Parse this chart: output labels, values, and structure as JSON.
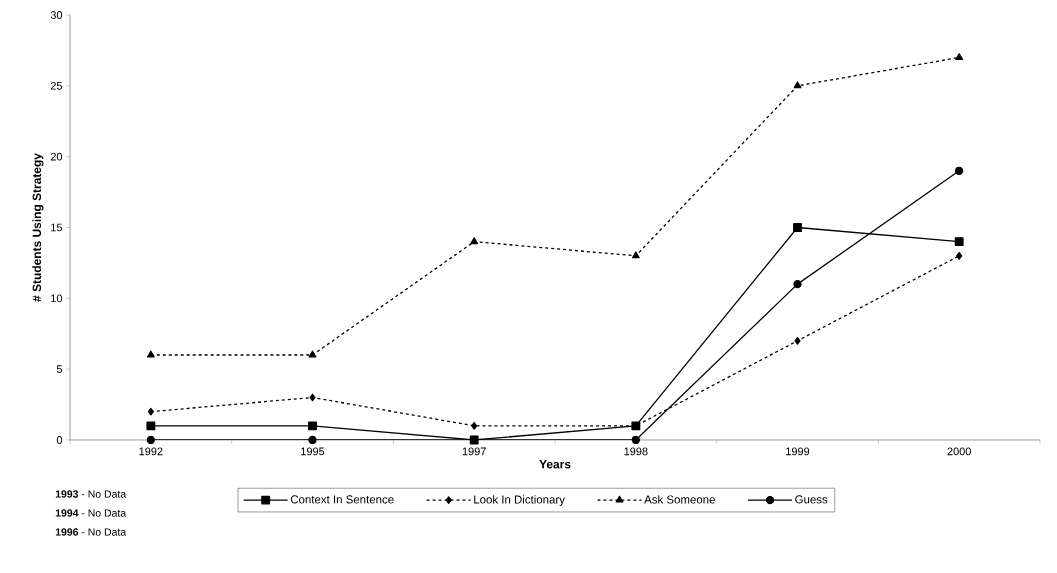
{
  "chart_data": {
    "type": "line",
    "xlabel": "Years",
    "ylabel": "# Students Using Strategy",
    "categories": [
      "1992",
      "1995",
      "1997",
      "1998",
      "1999",
      "2000"
    ],
    "series": [
      {
        "name": "Context In Sentence",
        "color": "#000000",
        "marker": "square",
        "line_style": "solid",
        "values": [
          1,
          1,
          0,
          1,
          15,
          14
        ]
      },
      {
        "name": "Look In Dictionary",
        "color": "#000000",
        "marker": "diamond",
        "line_style": "dashed",
        "values": [
          2,
          3,
          1,
          1,
          7,
          13
        ]
      },
      {
        "name": "Ask Someone",
        "color": "#000000",
        "marker": "triangle",
        "line_style": "dashed",
        "values": [
          6,
          6,
          14,
          13,
          25,
          27
        ]
      },
      {
        "name": "Guess",
        "color": "#000000",
        "marker": "circle",
        "line_style": "solid",
        "values": [
          0,
          0,
          0,
          0,
          11,
          19
        ]
      }
    ],
    "ylim": [
      0,
      30
    ],
    "yticks": [
      0,
      5,
      10,
      15,
      20,
      25,
      30
    ],
    "grid": false,
    "legend": "bottom",
    "annotations": [
      "**1993** - No Data",
      "**1994** - No Data",
      "**1996** - No Data"
    ]
  }
}
